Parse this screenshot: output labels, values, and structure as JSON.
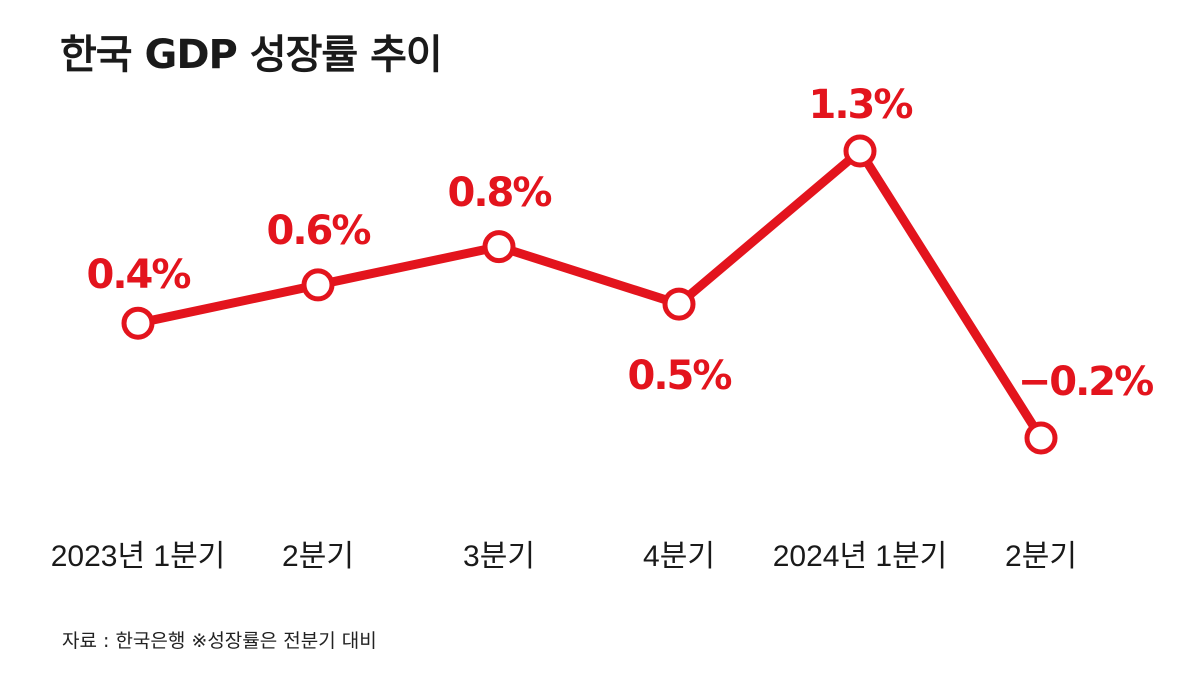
{
  "title": "한국 GDP 성장률 추이",
  "source": "자료 :  한국은행  ※성장률은 전분기 대비",
  "accent_color": "#e3141d",
  "chart_data": {
    "type": "line",
    "title": "한국 GDP 성장률 추이",
    "categories": [
      "2023년 1분기",
      "2분기",
      "3분기",
      "4분기",
      "2024년 1분기",
      "2분기"
    ],
    "values": [
      0.4,
      0.6,
      0.8,
      0.5,
      1.3,
      -0.2
    ],
    "data_labels": [
      "0.4%",
      "0.6%",
      "0.8%",
      "0.5%",
      "1.3%",
      "−0.2%"
    ],
    "unit": "%",
    "grid": false,
    "legend": "none"
  }
}
